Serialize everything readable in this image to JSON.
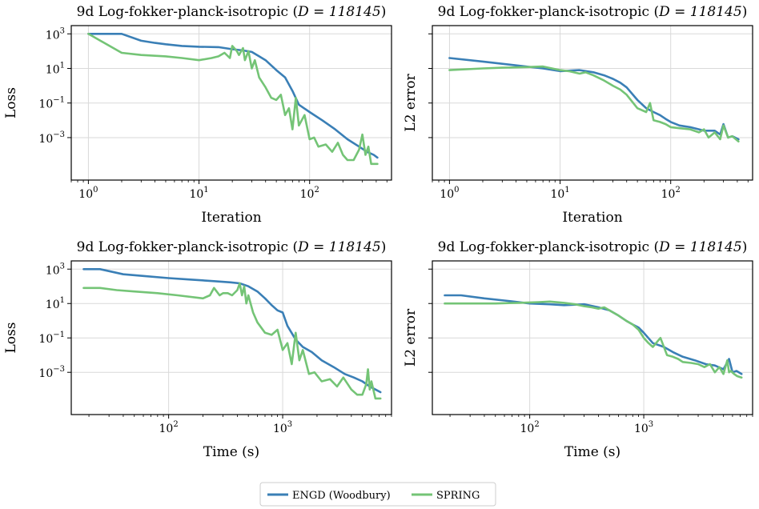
{
  "figure": {
    "legend": [
      {
        "label": "ENGD (Woodbury)",
        "color": "#3a7fb6"
      },
      {
        "label": "SPRING",
        "color": "#74c476"
      }
    ]
  },
  "chart_data": [
    {
      "type": "line",
      "title_prefix": "9d Log-fokker-planck-isotropic (",
      "title_math": "D = 118145",
      "title_suffix": ")",
      "xlabel": "Iteration",
      "ylabel": "Loss",
      "xscale": "log",
      "yscale": "log",
      "xlim": [
        0.7,
        550
      ],
      "ylim": [
        3.5e-06,
        3000
      ],
      "xticks": [
        {
          "base": "10",
          "exp": "0"
        },
        {
          "base": "10",
          "exp": "1"
        },
        {
          "base": "10",
          "exp": "2"
        }
      ],
      "yticks": [
        {
          "base": "10",
          "exp": "3"
        },
        {
          "base": "10",
          "exp": "1"
        },
        {
          "base": "10",
          "exp": "−1"
        },
        {
          "base": "10",
          "exp": "−3"
        }
      ],
      "show_ytick_labels": true,
      "series": [
        {
          "name": "ENGD (Woodbury)",
          "color": "#3a7fb6",
          "x": [
            1,
            2,
            3,
            4,
            5,
            7,
            10,
            15,
            20,
            25,
            30,
            35,
            40,
            50,
            60,
            70,
            80,
            100,
            130,
            170,
            220,
            280,
            330,
            380,
            410
          ],
          "y": [
            1000,
            1000,
            400,
            300,
            250,
            200,
            180,
            170,
            130,
            110,
            90,
            50,
            30,
            8,
            3,
            0.5,
            0.08,
            0.03,
            0.01,
            0.003,
            0.0008,
            0.0003,
            0.00015,
            0.0001,
            7e-05
          ]
        },
        {
          "name": "SPRING",
          "color": "#74c476",
          "x": [
            1,
            2,
            3,
            5,
            7,
            10,
            13,
            15,
            17,
            19,
            20,
            22,
            23,
            25,
            26,
            28,
            30,
            32,
            35,
            40,
            45,
            50,
            55,
            60,
            65,
            70,
            75,
            80,
            90,
            100,
            110,
            120,
            140,
            160,
            180,
            200,
            220,
            250,
            280,
            300,
            320,
            340,
            360,
            380,
            410
          ],
          "y": [
            1000,
            80,
            60,
            50,
            40,
            30,
            40,
            50,
            80,
            40,
            200,
            100,
            60,
            150,
            30,
            100,
            10,
            30,
            3,
            0.8,
            0.2,
            0.15,
            0.3,
            0.02,
            0.05,
            0.003,
            0.2,
            0.005,
            0.02,
            0.0008,
            0.001,
            0.0003,
            0.0004,
            0.00015,
            0.0005,
            0.0001,
            5e-05,
            5e-05,
            0.0002,
            0.0015,
            0.0001,
            0.0003,
            3e-05,
            3e-05,
            3e-05
          ]
        }
      ]
    },
    {
      "type": "line",
      "title_prefix": "9d Log-fokker-planck-isotropic (",
      "title_math": "D = 118145",
      "title_suffix": ")",
      "xlabel": "Iteration",
      "ylabel": "L2 error",
      "xscale": "log",
      "yscale": "log",
      "xlim": [
        0.7,
        550
      ],
      "ylim": [
        3.5e-06,
        3000
      ],
      "xticks": [
        {
          "base": "10",
          "exp": "0"
        },
        {
          "base": "10",
          "exp": "1"
        },
        {
          "base": "10",
          "exp": "2"
        }
      ],
      "yticks": [
        {
          "base": "10",
          "exp": "3"
        },
        {
          "base": "10",
          "exp": "1"
        },
        {
          "base": "10",
          "exp": "−1"
        },
        {
          "base": "10",
          "exp": "−3"
        }
      ],
      "show_ytick_labels": false,
      "series": [
        {
          "name": "ENGD (Woodbury)",
          "color": "#3a7fb6",
          "x": [
            1,
            2,
            4,
            7,
            10,
            15,
            20,
            25,
            30,
            35,
            40,
            50,
            60,
            70,
            80,
            90,
            100,
            120,
            150,
            180,
            200,
            250,
            280,
            300,
            330,
            360,
            410
          ],
          "y": [
            40,
            25,
            15,
            10,
            7,
            8,
            6,
            4,
            2.5,
            1.5,
            0.8,
            0.15,
            0.05,
            0.03,
            0.02,
            0.012,
            0.008,
            0.005,
            0.004,
            0.003,
            0.0025,
            0.0025,
            0.0015,
            0.006,
            0.001,
            0.0012,
            0.0008
          ]
        },
        {
          "name": "SPRING",
          "color": "#74c476",
          "x": [
            1,
            2,
            3,
            5,
            7,
            10,
            12,
            15,
            17,
            20,
            25,
            30,
            35,
            40,
            50,
            60,
            65,
            70,
            80,
            90,
            100,
            120,
            150,
            180,
            200,
            220,
            250,
            280,
            300,
            330,
            360,
            410
          ],
          "y": [
            8,
            10,
            11,
            12,
            13,
            8,
            7,
            5,
            6,
            4,
            2,
            1,
            0.6,
            0.3,
            0.05,
            0.03,
            0.1,
            0.01,
            0.008,
            0.006,
            0.004,
            0.0035,
            0.003,
            0.002,
            0.003,
            0.001,
            0.002,
            0.0008,
            0.005,
            0.001,
            0.0012,
            0.0006
          ]
        }
      ]
    },
    {
      "type": "line",
      "title_prefix": "9d Log-fokker-planck-isotropic (",
      "title_math": "D = 118145",
      "title_suffix": ")",
      "xlabel": "Time (s)",
      "ylabel": "Loss",
      "xscale": "log",
      "yscale": "log",
      "xlim": [
        14,
        9000
      ],
      "ylim": [
        3.5e-06,
        3000
      ],
      "xticks": [
        {
          "base": "10",
          "exp": "2"
        },
        {
          "base": "10",
          "exp": "3"
        }
      ],
      "yticks": [
        {
          "base": "10",
          "exp": "3"
        },
        {
          "base": "10",
          "exp": "1"
        },
        {
          "base": "10",
          "exp": "−1"
        },
        {
          "base": "10",
          "exp": "−3"
        }
      ],
      "show_ytick_labels": true,
      "series": [
        {
          "name": "ENGD (Woodbury)",
          "color": "#3a7fb6",
          "x": [
            18,
            25,
            40,
            60,
            100,
            150,
            250,
            350,
            420,
            500,
            600,
            700,
            800,
            900,
            1000,
            1100,
            1300,
            1500,
            1800,
            2200,
            2800,
            3500,
            4200,
            5000,
            5800,
            6500,
            7200
          ],
          "y": [
            1000,
            1000,
            500,
            400,
            300,
            250,
            200,
            170,
            150,
            100,
            50,
            20,
            8,
            4,
            3,
            0.5,
            0.08,
            0.03,
            0.015,
            0.005,
            0.002,
            0.0008,
            0.0005,
            0.0003,
            0.00015,
            0.0001,
            7e-05
          ]
        },
        {
          "name": "SPRING",
          "color": "#74c476",
          "x": [
            18,
            25,
            35,
            50,
            80,
            120,
            200,
            230,
            250,
            280,
            300,
            330,
            360,
            400,
            420,
            440,
            460,
            480,
            500,
            550,
            600,
            700,
            800,
            900,
            1000,
            1100,
            1200,
            1300,
            1400,
            1500,
            1700,
            1900,
            2200,
            2600,
            3000,
            3400,
            4000,
            4500,
            5000,
            5400,
            5600,
            5800,
            6000,
            6500,
            7200
          ],
          "y": [
            80,
            80,
            60,
            50,
            40,
            30,
            20,
            30,
            80,
            30,
            40,
            40,
            30,
            60,
            150,
            30,
            100,
            10,
            30,
            3,
            0.8,
            0.2,
            0.15,
            0.3,
            0.02,
            0.05,
            0.003,
            0.2,
            0.005,
            0.02,
            0.0008,
            0.001,
            0.0003,
            0.0004,
            0.00015,
            0.0005,
            0.0001,
            5e-05,
            5e-05,
            0.0002,
            0.0015,
            0.0001,
            0.0003,
            3e-05,
            3e-05
          ]
        }
      ]
    },
    {
      "type": "line",
      "title_prefix": "9d Log-fokker-planck-isotropic (",
      "title_math": "D = 118145",
      "title_suffix": ")",
      "xlabel": "Time (s)",
      "ylabel": "L2 error",
      "xscale": "log",
      "yscale": "log",
      "xlim": [
        14,
        9000
      ],
      "ylim": [
        3.5e-06,
        3000
      ],
      "xticks": [
        {
          "base": "10",
          "exp": "2"
        },
        {
          "base": "10",
          "exp": "3"
        }
      ],
      "yticks": [
        {
          "base": "10",
          "exp": "3"
        },
        {
          "base": "10",
          "exp": "1"
        },
        {
          "base": "10",
          "exp": "−1"
        },
        {
          "base": "10",
          "exp": "−3"
        }
      ],
      "show_ytick_labels": false,
      "series": [
        {
          "name": "ENGD (Woodbury)",
          "color": "#3a7fb6",
          "x": [
            18,
            25,
            40,
            60,
            100,
            150,
            200,
            300,
            400,
            500,
            600,
            700,
            800,
            900,
            1000,
            1200,
            1500,
            1800,
            2200,
            2800,
            3500,
            4200,
            5000,
            5600,
            6000,
            6500,
            7200
          ],
          "y": [
            30,
            30,
            20,
            15,
            10,
            9,
            8,
            9,
            6,
            4,
            2,
            1,
            0.6,
            0.4,
            0.2,
            0.05,
            0.03,
            0.015,
            0.008,
            0.005,
            0.003,
            0.0025,
            0.0015,
            0.006,
            0.001,
            0.0012,
            0.0008
          ]
        },
        {
          "name": "SPRING",
          "color": "#74c476",
          "x": [
            18,
            25,
            35,
            50,
            80,
            120,
            150,
            200,
            250,
            300,
            350,
            400,
            450,
            500,
            600,
            700,
            800,
            900,
            1000,
            1100,
            1200,
            1400,
            1600,
            1800,
            2000,
            2200,
            2600,
            3000,
            3400,
            3800,
            4200,
            4600,
            5000,
            5400,
            5600,
            5800,
            6200,
            6600,
            7200
          ],
          "y": [
            10,
            10,
            10,
            10,
            11,
            12,
            13,
            11,
            9,
            7,
            6,
            5,
            6,
            4,
            2,
            1,
            0.6,
            0.3,
            0.1,
            0.05,
            0.03,
            0.1,
            0.01,
            0.008,
            0.006,
            0.004,
            0.0035,
            0.003,
            0.002,
            0.003,
            0.001,
            0.002,
            0.0008,
            0.005,
            0.001,
            0.0012,
            0.0008,
            0.0006,
            0.0005
          ]
        }
      ]
    }
  ]
}
